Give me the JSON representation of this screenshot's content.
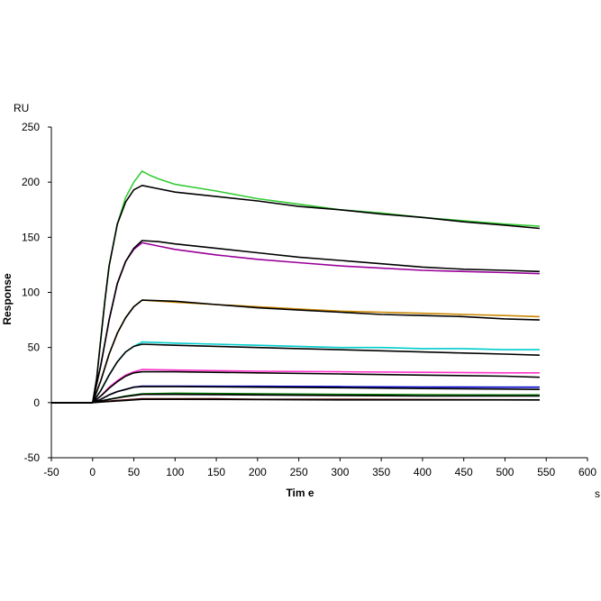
{
  "chart_data": {
    "type": "line",
    "title": "",
    "xlabel": "Tim e",
    "ylabel": "Response",
    "x_unit": "s",
    "y_unit": "RU",
    "xlim": [
      -50,
      600
    ],
    "ylim": [
      -50,
      250
    ],
    "xticks": [
      -50,
      0,
      50,
      100,
      150,
      200,
      250,
      300,
      350,
      400,
      450,
      500,
      550,
      600
    ],
    "yticks": [
      -50,
      0,
      50,
      100,
      150,
      200,
      250
    ],
    "grid": false,
    "legend": "none",
    "series": [
      {
        "color": "#33cc33",
        "width": 1.6,
        "points": [
          [
            -50,
            0
          ],
          [
            0,
            0
          ],
          [
            5,
            22
          ],
          [
            10,
            58
          ],
          [
            15,
            93
          ],
          [
            20,
            124
          ],
          [
            30,
            162
          ],
          [
            40,
            186
          ],
          [
            50,
            200
          ],
          [
            60,
            210
          ],
          [
            70,
            206
          ],
          [
            80,
            203
          ],
          [
            100,
            198
          ],
          [
            150,
            192
          ],
          [
            200,
            185
          ],
          [
            250,
            180
          ],
          [
            300,
            175
          ],
          [
            350,
            172
          ],
          [
            400,
            168
          ],
          [
            450,
            165
          ],
          [
            500,
            162
          ],
          [
            542,
            160
          ]
        ]
      },
      {
        "color": "#000000",
        "width": 1.6,
        "points": [
          [
            -50,
            0
          ],
          [
            0,
            0
          ],
          [
            5,
            22
          ],
          [
            10,
            58
          ],
          [
            15,
            93
          ],
          [
            20,
            124
          ],
          [
            30,
            162
          ],
          [
            40,
            182
          ],
          [
            50,
            193
          ],
          [
            60,
            197
          ],
          [
            80,
            194
          ],
          [
            100,
            191
          ],
          [
            150,
            187
          ],
          [
            200,
            183
          ],
          [
            250,
            178
          ],
          [
            300,
            175
          ],
          [
            350,
            171
          ],
          [
            400,
            168
          ],
          [
            450,
            164
          ],
          [
            500,
            161
          ],
          [
            542,
            158
          ]
        ]
      },
      {
        "color": "#990099",
        "width": 1.6,
        "points": [
          [
            -50,
            0
          ],
          [
            0,
            0
          ],
          [
            10,
            34
          ],
          [
            20,
            75
          ],
          [
            30,
            108
          ],
          [
            40,
            128
          ],
          [
            50,
            139
          ],
          [
            60,
            145
          ],
          [
            80,
            142
          ],
          [
            100,
            139
          ],
          [
            150,
            134
          ],
          [
            200,
            130
          ],
          [
            250,
            127
          ],
          [
            300,
            124
          ],
          [
            350,
            122
          ],
          [
            400,
            120
          ],
          [
            450,
            119
          ],
          [
            500,
            118
          ],
          [
            542,
            117
          ]
        ]
      },
      {
        "color": "#000000",
        "width": 1.6,
        "points": [
          [
            -50,
            0
          ],
          [
            0,
            0
          ],
          [
            10,
            34
          ],
          [
            20,
            75
          ],
          [
            30,
            108
          ],
          [
            40,
            128
          ],
          [
            50,
            140
          ],
          [
            60,
            147
          ],
          [
            80,
            146
          ],
          [
            100,
            144
          ],
          [
            150,
            140
          ],
          [
            200,
            136
          ],
          [
            250,
            132
          ],
          [
            300,
            129
          ],
          [
            350,
            126
          ],
          [
            400,
            123
          ],
          [
            450,
            121
          ],
          [
            500,
            120
          ],
          [
            542,
            119
          ]
        ]
      },
      {
        "color": "#cc8800",
        "width": 1.6,
        "points": [
          [
            -50,
            0
          ],
          [
            0,
            0
          ],
          [
            10,
            20
          ],
          [
            20,
            44
          ],
          [
            30,
            63
          ],
          [
            40,
            77
          ],
          [
            50,
            87
          ],
          [
            60,
            93
          ],
          [
            100,
            91
          ],
          [
            150,
            89
          ],
          [
            200,
            87
          ],
          [
            250,
            85
          ],
          [
            300,
            83
          ],
          [
            350,
            82
          ],
          [
            400,
            81
          ],
          [
            450,
            80
          ],
          [
            500,
            79
          ],
          [
            542,
            78
          ]
        ]
      },
      {
        "color": "#000000",
        "width": 1.6,
        "points": [
          [
            -50,
            0
          ],
          [
            0,
            0
          ],
          [
            10,
            20
          ],
          [
            20,
            44
          ],
          [
            30,
            63
          ],
          [
            40,
            77
          ],
          [
            50,
            87
          ],
          [
            60,
            93
          ],
          [
            100,
            92
          ],
          [
            150,
            89
          ],
          [
            200,
            86
          ],
          [
            250,
            84
          ],
          [
            300,
            82
          ],
          [
            350,
            80
          ],
          [
            400,
            79
          ],
          [
            450,
            78
          ],
          [
            500,
            76
          ],
          [
            542,
            75
          ]
        ]
      },
      {
        "color": "#00cccc",
        "width": 1.6,
        "points": [
          [
            -50,
            0
          ],
          [
            0,
            0
          ],
          [
            10,
            11
          ],
          [
            20,
            25
          ],
          [
            30,
            37
          ],
          [
            40,
            46
          ],
          [
            50,
            51
          ],
          [
            60,
            55
          ],
          [
            100,
            54
          ],
          [
            150,
            53
          ],
          [
            200,
            52
          ],
          [
            250,
            51
          ],
          [
            300,
            50
          ],
          [
            350,
            50
          ],
          [
            400,
            49
          ],
          [
            450,
            49
          ],
          [
            500,
            48
          ],
          [
            542,
            48
          ]
        ]
      },
      {
        "color": "#000000",
        "width": 1.6,
        "points": [
          [
            -50,
            0
          ],
          [
            0,
            0
          ],
          [
            10,
            11
          ],
          [
            20,
            25
          ],
          [
            30,
            37
          ],
          [
            40,
            46
          ],
          [
            50,
            51
          ],
          [
            60,
            53
          ],
          [
            100,
            52
          ],
          [
            150,
            51
          ],
          [
            200,
            50
          ],
          [
            250,
            49
          ],
          [
            300,
            48
          ],
          [
            350,
            47
          ],
          [
            400,
            46
          ],
          [
            450,
            45
          ],
          [
            500,
            44
          ],
          [
            542,
            43
          ]
        ]
      },
      {
        "color": "#ff33cc",
        "width": 1.6,
        "points": [
          [
            -50,
            0
          ],
          [
            0,
            0
          ],
          [
            10,
            6
          ],
          [
            20,
            14
          ],
          [
            30,
            20
          ],
          [
            40,
            25
          ],
          [
            50,
            28
          ],
          [
            60,
            30
          ],
          [
            100,
            29.5
          ],
          [
            200,
            28.5
          ],
          [
            300,
            28
          ],
          [
            400,
            27.5
          ],
          [
            500,
            27
          ],
          [
            542,
            27
          ]
        ]
      },
      {
        "color": "#000000",
        "width": 1.6,
        "points": [
          [
            -50,
            0
          ],
          [
            0,
            0
          ],
          [
            10,
            6
          ],
          [
            20,
            13
          ],
          [
            30,
            19
          ],
          [
            40,
            24
          ],
          [
            50,
            27
          ],
          [
            60,
            28
          ],
          [
            100,
            28
          ],
          [
            200,
            27
          ],
          [
            300,
            26
          ],
          [
            400,
            25
          ],
          [
            500,
            24
          ],
          [
            542,
            23
          ]
        ]
      },
      {
        "color": "#0000cc",
        "width": 1.6,
        "points": [
          [
            -50,
            0
          ],
          [
            0,
            0
          ],
          [
            10,
            3
          ],
          [
            20,
            7
          ],
          [
            30,
            10
          ],
          [
            40,
            12
          ],
          [
            50,
            14
          ],
          [
            60,
            15
          ],
          [
            100,
            15
          ],
          [
            200,
            14.8
          ],
          [
            300,
            14.5
          ],
          [
            400,
            14.2
          ],
          [
            500,
            14
          ],
          [
            542,
            14
          ]
        ]
      },
      {
        "color": "#000000",
        "width": 1.6,
        "points": [
          [
            -50,
            0
          ],
          [
            0,
            0
          ],
          [
            10,
            3
          ],
          [
            20,
            7
          ],
          [
            30,
            10
          ],
          [
            40,
            12
          ],
          [
            50,
            14
          ],
          [
            60,
            14.5
          ],
          [
            100,
            14.5
          ],
          [
            200,
            14
          ],
          [
            300,
            13.5
          ],
          [
            400,
            12.8
          ],
          [
            500,
            12.3
          ],
          [
            542,
            12
          ]
        ]
      },
      {
        "color": "#007700",
        "width": 1.6,
        "points": [
          [
            -50,
            0
          ],
          [
            0,
            0
          ],
          [
            20,
            3
          ],
          [
            40,
            6
          ],
          [
            60,
            8
          ],
          [
            100,
            8.5
          ],
          [
            200,
            8
          ],
          [
            300,
            7.5
          ],
          [
            400,
            7.2
          ],
          [
            500,
            7
          ],
          [
            542,
            7
          ]
        ]
      },
      {
        "color": "#000000",
        "width": 1.6,
        "points": [
          [
            -50,
            0
          ],
          [
            0,
            0
          ],
          [
            20,
            3
          ],
          [
            40,
            5.5
          ],
          [
            60,
            7.5
          ],
          [
            100,
            7.5
          ],
          [
            200,
            7
          ],
          [
            300,
            6.5
          ],
          [
            400,
            6
          ],
          [
            500,
            6
          ],
          [
            542,
            6
          ]
        ]
      },
      {
        "color": "#660000",
        "width": 1.6,
        "points": [
          [
            -50,
            0
          ],
          [
            0,
            0
          ],
          [
            30,
            2
          ],
          [
            60,
            3.5
          ],
          [
            150,
            3.5
          ],
          [
            200,
            3
          ],
          [
            300,
            3
          ],
          [
            400,
            2.8
          ],
          [
            542,
            2.5
          ]
        ]
      },
      {
        "color": "#000000",
        "width": 1.6,
        "points": [
          [
            -50,
            0
          ],
          [
            0,
            0
          ],
          [
            20,
            1
          ],
          [
            40,
            2
          ],
          [
            60,
            3
          ],
          [
            100,
            3
          ],
          [
            200,
            2.8
          ],
          [
            300,
            2.5
          ],
          [
            400,
            2.5
          ],
          [
            542,
            2.5
          ]
        ]
      }
    ]
  }
}
